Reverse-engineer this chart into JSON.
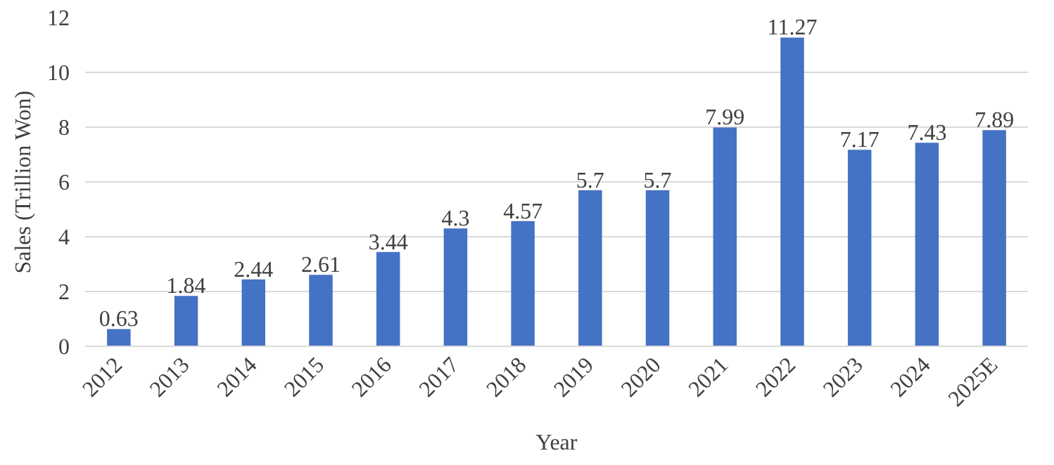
{
  "chart_data": {
    "type": "bar",
    "xlabel": "Year",
    "ylabel": "Sales (Trillion Won)",
    "categories": [
      "2012",
      "2013",
      "2014",
      "2015",
      "2016",
      "2017",
      "2018",
      "2019",
      "2020",
      "2021",
      "2022",
      "2023",
      "2024",
      "2025E"
    ],
    "values": [
      0.63,
      1.84,
      2.44,
      2.61,
      3.44,
      4.3,
      4.57,
      5.7,
      5.7,
      7.99,
      11.27,
      7.17,
      7.43,
      7.89
    ],
    "color": "#4472c4",
    "ylim": [
      0,
      12
    ],
    "yticks": [
      0,
      2,
      4,
      6,
      8,
      10,
      12
    ],
    "grid": "y",
    "data_labels": true
  }
}
